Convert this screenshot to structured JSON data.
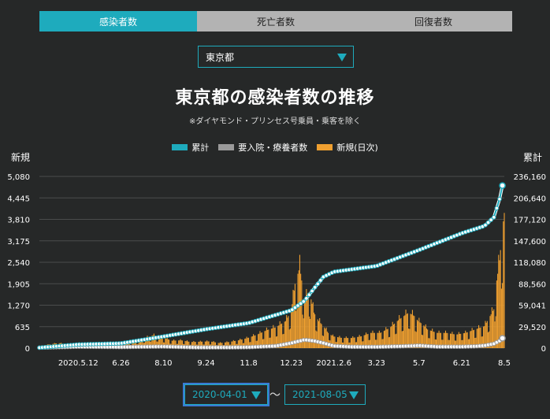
{
  "tabs": [
    {
      "label": "感染者数",
      "active": true
    },
    {
      "label": "死亡者数",
      "active": false
    },
    {
      "label": "回復者数",
      "active": false
    }
  ],
  "region_select": {
    "value": "東京都"
  },
  "header": {
    "title": "東京都の感染者数の推移",
    "subtitle": "※ダイヤモンド・プリンセス号乗員・乗客を除く"
  },
  "colors": {
    "accent": "#1eabbd",
    "cumulative": "#1eabbd",
    "hospitalized": "#9a9a9a",
    "new_daily": "#f0a030"
  },
  "date_range": {
    "start": "2020-04-01",
    "end": "2021-08-05",
    "separator": "～"
  },
  "chart_data": {
    "type": "bar+line",
    "left_axis_title": "新規",
    "right_axis_title": "累計",
    "left_ticks": [
      "0",
      "635",
      "1,270",
      "1,905",
      "2,540",
      "3,175",
      "3,810",
      "4,445",
      "5,080"
    ],
    "right_ticks": [
      "0",
      "29,520",
      "59,041",
      "88,560",
      "118,080",
      "147,600",
      "177,120",
      "206,640",
      "236,160"
    ],
    "ylim_left": [
      0,
      5080
    ],
    "ylim_right": [
      0,
      236160
    ],
    "x_ticks": [
      "2020.5.12",
      "6.26",
      "8.10",
      "9.24",
      "11.8",
      "12.23",
      "2021.2.6",
      "3.23",
      "5.7",
      "6.21",
      "8.5"
    ],
    "x_tick_days": [
      41,
      86,
      131,
      176,
      221,
      266,
      311,
      356,
      401,
      446,
      491
    ],
    "x_range_days": [
      0,
      491
    ],
    "legend": [
      {
        "label": "累計",
        "color": "#1eabbd"
      },
      {
        "label": "要入院・療養者数",
        "color": "#9a9a9a"
      },
      {
        "label": "新規(日次)",
        "color": "#f0a030"
      }
    ],
    "series": [
      {
        "name": "新規(日次)",
        "kind": "bar",
        "days": [
          0,
          20,
          40,
          60,
          80,
          100,
          110,
          120,
          130,
          140,
          150,
          160,
          170,
          180,
          190,
          200,
          210,
          220,
          230,
          240,
          250,
          260,
          266,
          270,
          275,
          280,
          285,
          290,
          295,
          300,
          305,
          310,
          320,
          330,
          340,
          350,
          360,
          370,
          380,
          390,
          396,
          400,
          405,
          410,
          420,
          430,
          440,
          450,
          460,
          470,
          475,
          480,
          483,
          486,
          489,
          491
        ],
        "values": [
          60,
          150,
          70,
          20,
          40,
          180,
          280,
          380,
          320,
          220,
          230,
          180,
          190,
          200,
          150,
          180,
          230,
          300,
          400,
          530,
          620,
          800,
          1100,
          1900,
          2400,
          1400,
          1700,
          1050,
          800,
          650,
          450,
          350,
          300,
          300,
          350,
          450,
          450,
          600,
          850,
          1050,
          950,
          800,
          700,
          550,
          450,
          450,
          400,
          450,
          550,
          650,
          900,
          1150,
          2000,
          2600,
          3500,
          4000
        ]
      },
      {
        "name": "累計",
        "kind": "line",
        "axis": "right",
        "days": [
          0,
          41,
          86,
          131,
          176,
          221,
          266,
          280,
          290,
          300,
          311,
          356,
          401,
          446,
          470,
          480,
          486,
          491
        ],
        "values": [
          600,
          5000,
          6500,
          16000,
          26000,
          34500,
          52000,
          65000,
          82000,
          98000,
          105000,
          113000,
          135000,
          158000,
          168000,
          180000,
          205000,
          236000
        ]
      },
      {
        "name": "要入院・療養者数",
        "kind": "line",
        "axis": "right",
        "days": [
          0,
          41,
          86,
          131,
          166,
          200,
          221,
          250,
          266,
          280,
          290,
          300,
          311,
          330,
          356,
          380,
          401,
          420,
          446,
          460,
          470,
          480,
          486,
          491
        ],
        "values": [
          600,
          2000,
          1500,
          2200,
          1000,
          1000,
          1300,
          3000,
          7000,
          11500,
          10000,
          7000,
          3000,
          1800,
          1700,
          2500,
          3500,
          2000,
          2000,
          2500,
          3500,
          6000,
          10000,
          16000
        ]
      }
    ]
  }
}
